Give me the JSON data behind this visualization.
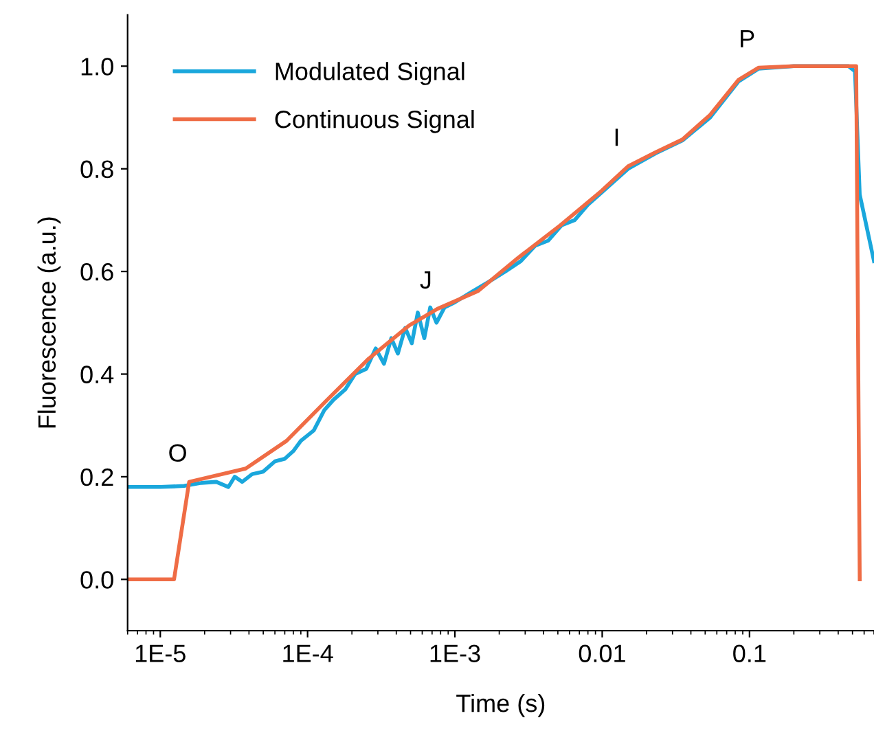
{
  "chart_data": {
    "type": "line",
    "xlabel": "Time (s)",
    "ylabel": "Fluorescence (a.u.)",
    "log": "x",
    "xlim": [
      6e-06,
      0.7
    ],
    "ylim": [
      -0.1,
      1.1
    ],
    "xticks": [
      {
        "value": 1e-05,
        "label": "1E-5"
      },
      {
        "value": 0.0001,
        "label": "1E-4"
      },
      {
        "value": 0.001,
        "label": "1E-3"
      },
      {
        "value": 0.01,
        "label": "0.01"
      },
      {
        "value": 0.1,
        "label": "0.1"
      }
    ],
    "yticks": [
      {
        "value": 0,
        "label": "0.0"
      },
      {
        "value": 0.2,
        "label": "0.2"
      },
      {
        "value": 0.4,
        "label": "0.4"
      },
      {
        "value": 0.6,
        "label": "0.6"
      },
      {
        "value": 0.8,
        "label": "0.8"
      },
      {
        "value": 1,
        "label": "1.0"
      }
    ],
    "grid": false,
    "legend": "top left",
    "series": [
      {
        "name": "Modulated Signal",
        "color": "#1aa7dc",
        "x": [
          6e-06,
          1e-05,
          1.45e-05,
          1.9e-05,
          2.4e-05,
          2.9e-05,
          3.2e-05,
          3.6e-05,
          4.2e-05,
          5e-05,
          6e-05,
          7e-05,
          8e-05,
          9e-05,
          0.00011,
          0.00013,
          0.00015,
          0.00018,
          0.00021,
          0.00025,
          0.00029,
          0.00033,
          0.00037,
          0.00041,
          0.00046,
          0.00051,
          0.00056,
          0.00062,
          0.00068,
          0.00075,
          0.00085,
          0.001,
          0.0013,
          0.0017,
          0.0022,
          0.0028,
          0.0035,
          0.0043,
          0.0053,
          0.0065,
          0.008,
          0.01,
          0.015,
          0.023,
          0.035,
          0.054,
          0.084,
          0.115,
          0.2,
          0.47,
          0.52,
          0.56,
          0.7
        ],
        "values": [
          0.18,
          0.18,
          0.182,
          0.188,
          0.19,
          0.18,
          0.2,
          0.19,
          0.205,
          0.21,
          0.23,
          0.235,
          0.25,
          0.27,
          0.29,
          0.33,
          0.35,
          0.37,
          0.4,
          0.41,
          0.45,
          0.42,
          0.47,
          0.44,
          0.49,
          0.46,
          0.52,
          0.47,
          0.53,
          0.5,
          0.53,
          0.54,
          0.56,
          0.58,
          0.6,
          0.62,
          0.65,
          0.66,
          0.69,
          0.7,
          0.73,
          0.755,
          0.8,
          0.83,
          0.855,
          0.9,
          0.97,
          0.995,
          1.0,
          1.0,
          0.99,
          0.75,
          0.62
        ]
      },
      {
        "name": "Continuous Signal",
        "color": "#ef6c45",
        "x": [
          6e-06,
          1.24e-05,
          1.57e-05,
          3.8e-05,
          7.2e-05,
          0.000136,
          0.00026,
          0.00049,
          0.00076,
          0.00144,
          0.0027,
          0.0052,
          0.0099,
          0.015,
          0.023,
          0.035,
          0.054,
          0.084,
          0.115,
          0.2,
          0.47,
          0.53,
          0.56
        ],
        "values": [
          0.0,
          0.0,
          0.19,
          0.216,
          0.27,
          0.35,
          0.43,
          0.495,
          0.527,
          0.562,
          0.627,
          0.69,
          0.757,
          0.805,
          0.832,
          0.857,
          0.905,
          0.973,
          0.997,
          1.0,
          1.0,
          1.0,
          0.0
        ]
      }
    ],
    "annotations": [
      {
        "text": "O",
        "x": 1.57e-05,
        "y": 0.19
      },
      {
        "text": "J",
        "x": 0.00076,
        "y": 0.527
      },
      {
        "text": "I",
        "x": 0.015,
        "y": 0.805
      },
      {
        "text": "P",
        "x": 0.115,
        "y": 0.997
      }
    ]
  }
}
